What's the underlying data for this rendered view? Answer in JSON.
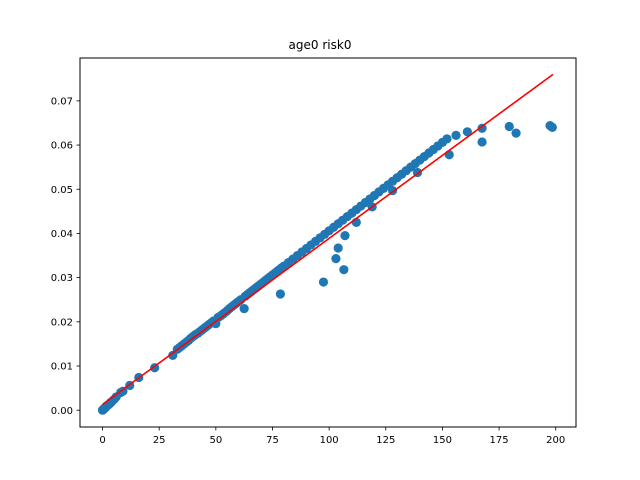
{
  "chart_data": {
    "type": "scatter",
    "title": "age0 risk0",
    "xlabel": "",
    "ylabel": "",
    "xlim": [
      -9.95,
      208.95
    ],
    "ylim": [
      -0.0038,
      0.0797
    ],
    "grid": false,
    "x_ticks": [
      0,
      25,
      50,
      75,
      100,
      125,
      150,
      175,
      200
    ],
    "x_tick_labels": [
      "0",
      "25",
      "50",
      "75",
      "100",
      "125",
      "150",
      "175",
      "200"
    ],
    "y_ticks": [
      0.0,
      0.01,
      0.02,
      0.03,
      0.04,
      0.05,
      0.06,
      0.07
    ],
    "y_tick_labels": [
      "0.00",
      "0.01",
      "0.02",
      "0.03",
      "0.04",
      "0.05",
      "0.06",
      "0.07"
    ],
    "colors": {
      "points": "#1f77b4",
      "line": "#ff0000"
    },
    "series": [
      {
        "kind": "scatter",
        "points": [
          [
            0.0,
            0.0
          ],
          [
            0.1,
            0.0001
          ],
          [
            0.2,
            0.0001
          ],
          [
            0.4,
            0.0002
          ],
          [
            0.6,
            0.0003
          ],
          [
            0.8,
            0.0004
          ],
          [
            1.0,
            0.0005
          ],
          [
            1.3,
            0.0006
          ],
          [
            1.6,
            0.0008
          ],
          [
            2.0,
            0.001
          ],
          [
            2.5,
            0.0012
          ],
          [
            3.0,
            0.0014
          ],
          [
            3.5,
            0.0017
          ],
          [
            4.0,
            0.0019
          ],
          [
            5.0,
            0.0024
          ],
          [
            6.0,
            0.003
          ],
          [
            8.0,
            0.004
          ],
          [
            9.0,
            0.0043
          ],
          [
            12.0,
            0.0056
          ],
          [
            16.0,
            0.0074
          ],
          [
            23.0,
            0.0096
          ],
          [
            31.0,
            0.0124
          ],
          [
            33.0,
            0.0138
          ],
          [
            34.0,
            0.0142
          ],
          [
            35.0,
            0.0146
          ],
          [
            36.0,
            0.015
          ],
          [
            37.0,
            0.0154
          ],
          [
            38.0,
            0.0158
          ],
          [
            39.0,
            0.0163
          ],
          [
            40.0,
            0.0167
          ],
          [
            41.0,
            0.0171
          ],
          [
            42.0,
            0.0174
          ],
          [
            43.0,
            0.0178
          ],
          [
            44.0,
            0.0182
          ],
          [
            45.0,
            0.0186
          ],
          [
            46.0,
            0.019
          ],
          [
            47.0,
            0.0194
          ],
          [
            48.0,
            0.0198
          ],
          [
            49.0,
            0.0202
          ],
          [
            50.0,
            0.0196
          ],
          [
            51.0,
            0.021
          ],
          [
            52.0,
            0.0213
          ],
          [
            53.0,
            0.0217
          ],
          [
            54.0,
            0.0221
          ],
          [
            55.0,
            0.0225
          ],
          [
            56.0,
            0.023
          ],
          [
            57.0,
            0.0234
          ],
          [
            58.0,
            0.0238
          ],
          [
            59.0,
            0.0242
          ],
          [
            60.0,
            0.0246
          ],
          [
            61.0,
            0.025
          ],
          [
            62.5,
            0.023
          ],
          [
            63.0,
            0.0258
          ],
          [
            64.0,
            0.0262
          ],
          [
            65.0,
            0.0266
          ],
          [
            66.0,
            0.027
          ],
          [
            67.0,
            0.0274
          ],
          [
            68.0,
            0.0278
          ],
          [
            69.0,
            0.0282
          ],
          [
            70.0,
            0.0286
          ],
          [
            71.0,
            0.029
          ],
          [
            72.0,
            0.0294
          ],
          [
            73.0,
            0.0298
          ],
          [
            74.0,
            0.0302
          ],
          [
            75.0,
            0.0306
          ],
          [
            76.0,
            0.031
          ],
          [
            77.0,
            0.0314
          ],
          [
            78.0,
            0.0318
          ],
          [
            78.5,
            0.0263
          ],
          [
            79.0,
            0.0322
          ],
          [
            80.0,
            0.0326
          ],
          [
            82.0,
            0.0334
          ],
          [
            84.0,
            0.0342
          ],
          [
            86.0,
            0.035
          ],
          [
            88.0,
            0.0358
          ],
          [
            90.0,
            0.0366
          ],
          [
            92.0,
            0.0374
          ],
          [
            94.0,
            0.0382
          ],
          [
            96.0,
            0.039
          ],
          [
            97.5,
            0.029
          ],
          [
            98.0,
            0.0398
          ],
          [
            100.0,
            0.0406
          ],
          [
            102.0,
            0.0414
          ],
          [
            103.0,
            0.0343
          ],
          [
            104.0,
            0.0367
          ],
          [
            104.0,
            0.0422
          ],
          [
            106.0,
            0.043
          ],
          [
            106.5,
            0.0318
          ],
          [
            107.0,
            0.0395
          ],
          [
            108.0,
            0.0438
          ],
          [
            110.0,
            0.0446
          ],
          [
            112.0,
            0.0425
          ],
          [
            112.0,
            0.0454
          ],
          [
            114.0,
            0.0462
          ],
          [
            116.0,
            0.047
          ],
          [
            118.0,
            0.0478
          ],
          [
            119.0,
            0.046
          ],
          [
            120.0,
            0.0486
          ],
          [
            122.0,
            0.0494
          ],
          [
            124.0,
            0.0502
          ],
          [
            126.0,
            0.051
          ],
          [
            128.0,
            0.0497
          ],
          [
            128.0,
            0.0518
          ],
          [
            130.0,
            0.0526
          ],
          [
            132.0,
            0.0534
          ],
          [
            134.0,
            0.0542
          ],
          [
            136.0,
            0.055
          ],
          [
            138.0,
            0.0558
          ],
          [
            139.0,
            0.0538
          ],
          [
            140.0,
            0.0566
          ],
          [
            142.0,
            0.0574
          ],
          [
            144.0,
            0.0582
          ],
          [
            146.0,
            0.059
          ],
          [
            148.0,
            0.0598
          ],
          [
            150.0,
            0.0606
          ],
          [
            152.0,
            0.0614
          ],
          [
            153.0,
            0.0578
          ],
          [
            156.0,
            0.0622
          ],
          [
            161.0,
            0.063
          ],
          [
            167.5,
            0.0638
          ],
          [
            167.5,
            0.0607
          ],
          [
            179.5,
            0.0642
          ],
          [
            182.5,
            0.0627
          ],
          [
            197.5,
            0.0644
          ],
          [
            198.5,
            0.064
          ]
        ]
      },
      {
        "kind": "line",
        "points": [
          [
            0.0,
            0.0013
          ],
          [
            198.8,
            0.076
          ]
        ]
      }
    ]
  }
}
